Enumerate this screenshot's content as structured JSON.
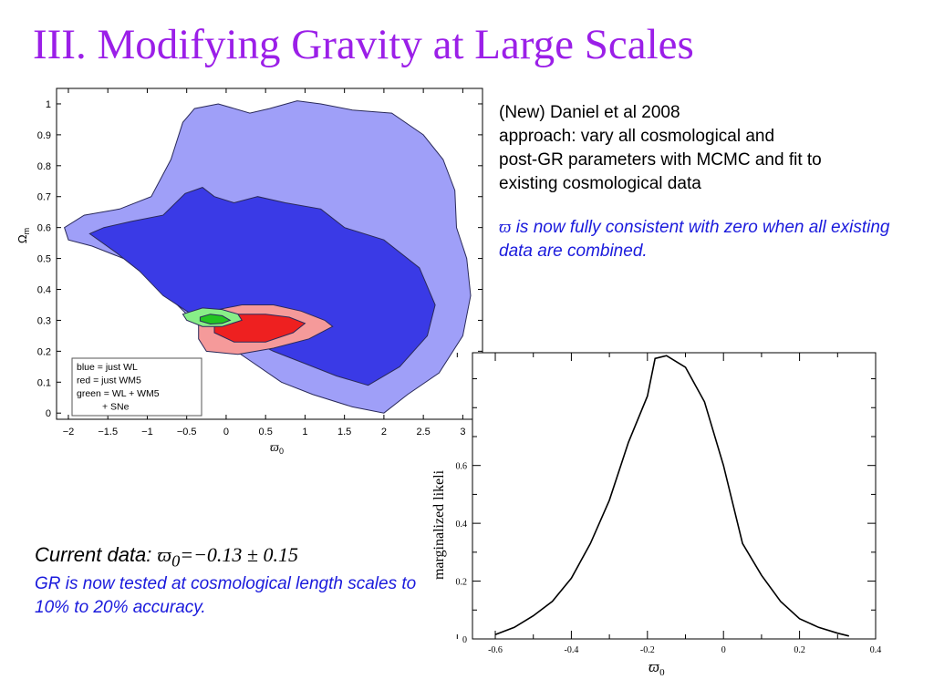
{
  "slide": {
    "title": "III. Modifying Gravity at Large Scales"
  },
  "text_block": {
    "lines": [
      "(New) Daniel et al 2008",
      "approach: vary all cosmological and",
      "post-GR parameters with MCMC and fit to",
      "existing cosmological data"
    ],
    "symbol": "ϖ",
    "highlight": "is now fully consistent with zero when all existing data are combined."
  },
  "result": {
    "prefix": "Current data: ",
    "symbol": "ϖ",
    "subscript": "0",
    "value": "=−0.13 ± 0.15",
    "statement": "GR is now tested at cosmological length scales to 10% to 20% accuracy."
  },
  "chart_data": [
    {
      "type": "contour",
      "xlabel": "ϖ0",
      "ylabel": "Ωm",
      "xlim": [
        -2.15,
        3.25
      ],
      "ylim": [
        -0.02,
        1.05
      ],
      "xticks": [
        -2,
        -1.5,
        -1,
        -0.5,
        0,
        0.5,
        1,
        1.5,
        2,
        2.5,
        3
      ],
      "yticks": [
        0,
        0.1,
        0.2,
        0.3,
        0.4,
        0.5,
        0.6,
        0.7,
        0.8,
        0.9,
        1
      ],
      "xtick_labels": [
        "−2",
        "−1.5",
        "−1",
        "−0.5",
        "0",
        "0.5",
        "1",
        "1.5",
        "2",
        "2.5",
        "3"
      ],
      "ytick_labels": [
        "0",
        "0.1",
        "0.2",
        "0.3",
        "0.4",
        "0.5",
        "0.6",
        "0.7",
        "0.8",
        "0.9",
        "1"
      ],
      "legend": {
        "position": "bottom-left",
        "entries": [
          "blue = just WL",
          "red = just WM5",
          "green = WL + WM5",
          "+ SNe"
        ]
      },
      "regions": [
        {
          "series": "just WL",
          "level": "outer",
          "color": "#9f9ff8",
          "points": [
            [
              -2,
              0.56
            ],
            [
              -2.05,
              0.6
            ],
            [
              -1.8,
              0.64
            ],
            [
              -1.35,
              0.66
            ],
            [
              -0.95,
              0.7
            ],
            [
              -0.7,
              0.82
            ],
            [
              -0.55,
              0.94
            ],
            [
              -0.4,
              0.985
            ],
            [
              -0.1,
              1.0
            ],
            [
              0.3,
              0.97
            ],
            [
              0.55,
              0.985
            ],
            [
              0.9,
              1.01
            ],
            [
              1.2,
              1.0
            ],
            [
              1.6,
              0.98
            ],
            [
              2.1,
              0.97
            ],
            [
              2.5,
              0.9
            ],
            [
              2.75,
              0.82
            ],
            [
              2.9,
              0.72
            ],
            [
              2.92,
              0.6
            ],
            [
              3.05,
              0.5
            ],
            [
              3.1,
              0.38
            ],
            [
              3.0,
              0.25
            ],
            [
              2.7,
              0.13
            ],
            [
              2.3,
              0.06
            ],
            [
              2.0,
              0.0
            ],
            [
              1.6,
              0.02
            ],
            [
              1.1,
              0.06
            ],
            [
              0.7,
              0.1
            ],
            [
              0.3,
              0.17
            ],
            [
              -0.1,
              0.24
            ],
            [
              -0.5,
              0.32
            ],
            [
              -0.9,
              0.42
            ],
            [
              -1.3,
              0.5
            ],
            [
              -1.7,
              0.54
            ]
          ]
        },
        {
          "series": "just WL",
          "level": "inner",
          "color": "#3a3ae6",
          "points": [
            [
              -1.73,
              0.58
            ],
            [
              -1.55,
              0.6
            ],
            [
              -1.2,
              0.62
            ],
            [
              -0.8,
              0.64
            ],
            [
              -0.52,
              0.71
            ],
            [
              -0.3,
              0.73
            ],
            [
              -0.15,
              0.7
            ],
            [
              0.1,
              0.68
            ],
            [
              0.4,
              0.7
            ],
            [
              0.75,
              0.68
            ],
            [
              1.2,
              0.66
            ],
            [
              1.5,
              0.6
            ],
            [
              2.0,
              0.56
            ],
            [
              2.45,
              0.47
            ],
            [
              2.65,
              0.35
            ],
            [
              2.55,
              0.25
            ],
            [
              2.2,
              0.15
            ],
            [
              1.8,
              0.09
            ],
            [
              1.4,
              0.12
            ],
            [
              1.0,
              0.16
            ],
            [
              0.6,
              0.2
            ],
            [
              0.2,
              0.25
            ],
            [
              -0.15,
              0.27
            ],
            [
              -0.5,
              0.33
            ],
            [
              -0.8,
              0.38
            ],
            [
              -1.1,
              0.46
            ],
            [
              -1.4,
              0.52
            ]
          ]
        },
        {
          "series": "just WM5",
          "level": "outer",
          "color": "#f59a9a",
          "points": [
            [
              -0.35,
              0.3
            ],
            [
              -0.2,
              0.33
            ],
            [
              0.2,
              0.35
            ],
            [
              0.6,
              0.35
            ],
            [
              0.95,
              0.33
            ],
            [
              1.25,
              0.3
            ],
            [
              1.35,
              0.28
            ],
            [
              1.05,
              0.24
            ],
            [
              0.6,
              0.21
            ],
            [
              0.15,
              0.19
            ],
            [
              -0.25,
              0.2
            ],
            [
              -0.35,
              0.24
            ]
          ]
        },
        {
          "series": "just WM5",
          "level": "inner",
          "color": "#ee2020",
          "points": [
            [
              -0.15,
              0.29
            ],
            [
              0.1,
              0.32
            ],
            [
              0.5,
              0.32
            ],
            [
              0.8,
              0.31
            ],
            [
              1.0,
              0.29
            ],
            [
              0.85,
              0.26
            ],
            [
              0.5,
              0.23
            ],
            [
              0.1,
              0.23
            ],
            [
              -0.15,
              0.26
            ]
          ]
        },
        {
          "series": "WL + WM5 + SNe",
          "level": "outer",
          "color": "#88ee88",
          "points": [
            [
              -0.55,
              0.32
            ],
            [
              -0.3,
              0.34
            ],
            [
              -0.05,
              0.335
            ],
            [
              0.15,
              0.32
            ],
            [
              0.2,
              0.3
            ],
            [
              -0.05,
              0.28
            ],
            [
              -0.3,
              0.28
            ],
            [
              -0.5,
              0.3
            ]
          ]
        },
        {
          "series": "WL + WM5 + SNe",
          "level": "inner",
          "color": "#22c522",
          "points": [
            [
              -0.33,
              0.31
            ],
            [
              -0.2,
              0.32
            ],
            [
              -0.05,
              0.315
            ],
            [
              0.05,
              0.3
            ],
            [
              -0.05,
              0.29
            ],
            [
              -0.2,
              0.288
            ],
            [
              -0.33,
              0.298
            ]
          ]
        }
      ]
    },
    {
      "type": "line",
      "xlabel": "ϖ0",
      "ylabel": "marginalized likeli",
      "xlim": [
        -0.66,
        0.4
      ],
      "ylim": [
        0,
        0.99
      ],
      "xticks": [
        -0.6,
        -0.4,
        -0.2,
        0,
        0.2,
        0.4
      ],
      "yticks": [
        0,
        0.2,
        0.4,
        0.6
      ],
      "xtick_labels": [
        "-0.6",
        "-0.4",
        "-0.2",
        "0",
        "0.2",
        "0.4"
      ],
      "ytick_labels": [
        "0",
        "0.2",
        "0.4",
        "0.6"
      ],
      "x": [
        -0.6,
        -0.55,
        -0.5,
        -0.45,
        -0.4,
        -0.35,
        -0.3,
        -0.25,
        -0.2,
        -0.18,
        -0.15,
        -0.1,
        -0.05,
        0,
        0.05,
        0.1,
        0.15,
        0.2,
        0.25,
        0.3,
        0.33
      ],
      "y": [
        0.015,
        0.04,
        0.08,
        0.13,
        0.21,
        0.33,
        0.48,
        0.68,
        0.84,
        0.97,
        0.98,
        0.94,
        0.82,
        0.6,
        0.33,
        0.22,
        0.13,
        0.07,
        0.04,
        0.02,
        0.01
      ]
    }
  ]
}
